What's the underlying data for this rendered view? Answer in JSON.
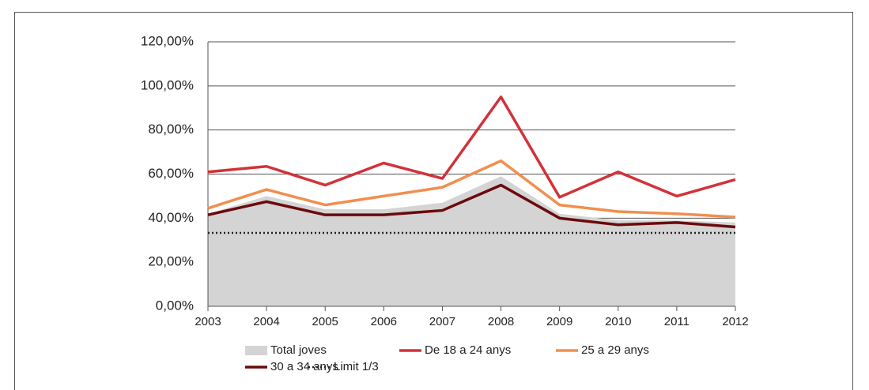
{
  "chart_data": {
    "type": "line",
    "categories": [
      "2003",
      "2004",
      "2005",
      "2006",
      "2007",
      "2008",
      "2009",
      "2010",
      "2011",
      "2012"
    ],
    "series": [
      {
        "name": "Total joves",
        "color": "#d4d4d4",
        "style": "area",
        "values": [
          42,
          50,
          44,
          44,
          47,
          59,
          42,
          39,
          39,
          38
        ]
      },
      {
        "name": "De 18 a 24 anys",
        "color": "#d2323a",
        "style": "solid",
        "values": [
          61,
          63.5,
          55,
          65,
          58,
          95,
          49.5,
          61,
          50,
          57.5
        ]
      },
      {
        "name": "25 a 29 anys",
        "color": "#f08f4f",
        "style": "solid",
        "values": [
          44.5,
          53,
          46,
          50,
          54,
          66,
          46,
          43,
          42,
          40.5
        ]
      },
      {
        "name": "30 a 34 anys",
        "color": "#6b0a0c",
        "style": "solid",
        "values": [
          41.5,
          47.5,
          41.5,
          41.5,
          43.5,
          55,
          40,
          37,
          38,
          36
        ]
      },
      {
        "name": "Limit 1/3",
        "color": "#222222",
        "style": "dotted",
        "values": [
          33.3,
          33.3,
          33.3,
          33.3,
          33.3,
          33.3,
          33.3,
          33.3,
          33.3,
          33.3
        ]
      }
    ],
    "ylim": [
      0,
      120
    ],
    "yticks": [
      {
        "value": 0,
        "label": "0,00%"
      },
      {
        "value": 20,
        "label": "20,00%"
      },
      {
        "value": 40,
        "label": "40,00%"
      },
      {
        "value": 60,
        "label": "60,00%"
      },
      {
        "value": 80,
        "label": "80,00%"
      },
      {
        "value": 100,
        "label": "100,00%"
      },
      {
        "value": 120,
        "label": "120,00%"
      }
    ],
    "grid": true
  }
}
